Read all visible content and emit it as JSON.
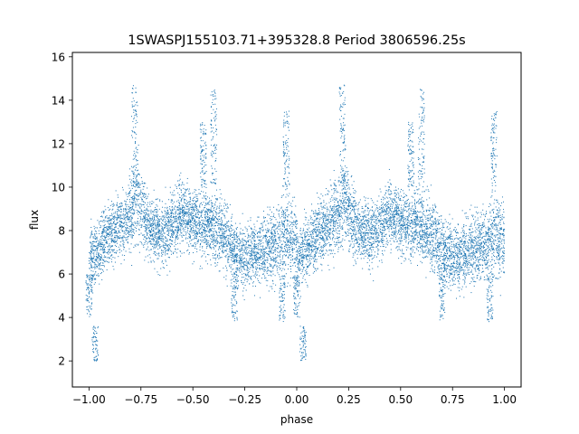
{
  "chart_data": {
    "type": "scatter",
    "title": "1SWASPJ155103.71+395328.8 Period 3806596.25s",
    "xlabel": "phase",
    "ylabel": "flux",
    "xlim": [
      -1.08,
      1.08
    ],
    "ylim": [
      0.8,
      16.2
    ],
    "xticks": [
      -1.0,
      -0.75,
      -0.5,
      -0.25,
      0.0,
      0.25,
      0.5,
      0.75,
      1.0
    ],
    "xtick_labels": [
      "−1.00",
      "−0.75",
      "−0.50",
      "−0.25",
      "0.00",
      "0.25",
      "0.50",
      "0.75",
      "1.00"
    ],
    "yticks": [
      2,
      4,
      6,
      8,
      10,
      12,
      14,
      16
    ],
    "ytick_labels": [
      "2",
      "4",
      "6",
      "8",
      "10",
      "12",
      "14",
      "16"
    ],
    "grid": false,
    "marker_color": "#1f77b4",
    "series": [
      {
        "phase_range": [
          -1.0,
          1.0
        ],
        "approx_point_count": 9000,
        "profile": {
          "phase": [
            0.0,
            0.05,
            0.1,
            0.15,
            0.2,
            0.23,
            0.25,
            0.3,
            0.35,
            0.4,
            0.45,
            0.5,
            0.55,
            0.6,
            0.65,
            0.7,
            0.75,
            0.8,
            0.85,
            0.9,
            0.95,
            1.0
          ],
          "flux_center": [
            6.5,
            7.2,
            7.8,
            8.2,
            8.8,
            9.5,
            9.0,
            8.0,
            7.8,
            8.2,
            8.8,
            8.5,
            8.3,
            8.2,
            7.8,
            7.0,
            6.8,
            6.9,
            7.2,
            7.3,
            7.8,
            7.5
          ],
          "flux_spread": [
            1.2,
            1.0,
            1.0,
            1.0,
            1.2,
            1.5,
            1.3,
            1.0,
            1.0,
            1.0,
            1.0,
            1.0,
            1.1,
            1.1,
            1.1,
            1.0,
            1.0,
            1.0,
            1.1,
            1.2,
            1.3,
            1.2
          ]
        },
        "flare_groups": [
          {
            "phase": 0.22,
            "flux_range": [
              10.0,
              14.8
            ]
          },
          {
            "phase": 0.55,
            "flux_range": [
              10.0,
              13.0
            ]
          },
          {
            "phase": 0.6,
            "flux_range": [
              10.0,
              14.5
            ]
          },
          {
            "phase": 0.95,
            "flux_range": [
              10.0,
              13.5
            ]
          }
        ],
        "dip_groups": [
          {
            "phase": 0.03,
            "flux_range": [
              2.0,
              3.6
            ]
          },
          {
            "phase": 0.7,
            "flux_range": [
              3.8,
              6.0
            ]
          },
          {
            "phase": 0.93,
            "flux_range": [
              3.8,
              6.0
            ]
          },
          {
            "phase": 0.0,
            "flux_range": [
              4.0,
              6.0
            ]
          }
        ]
      }
    ]
  }
}
